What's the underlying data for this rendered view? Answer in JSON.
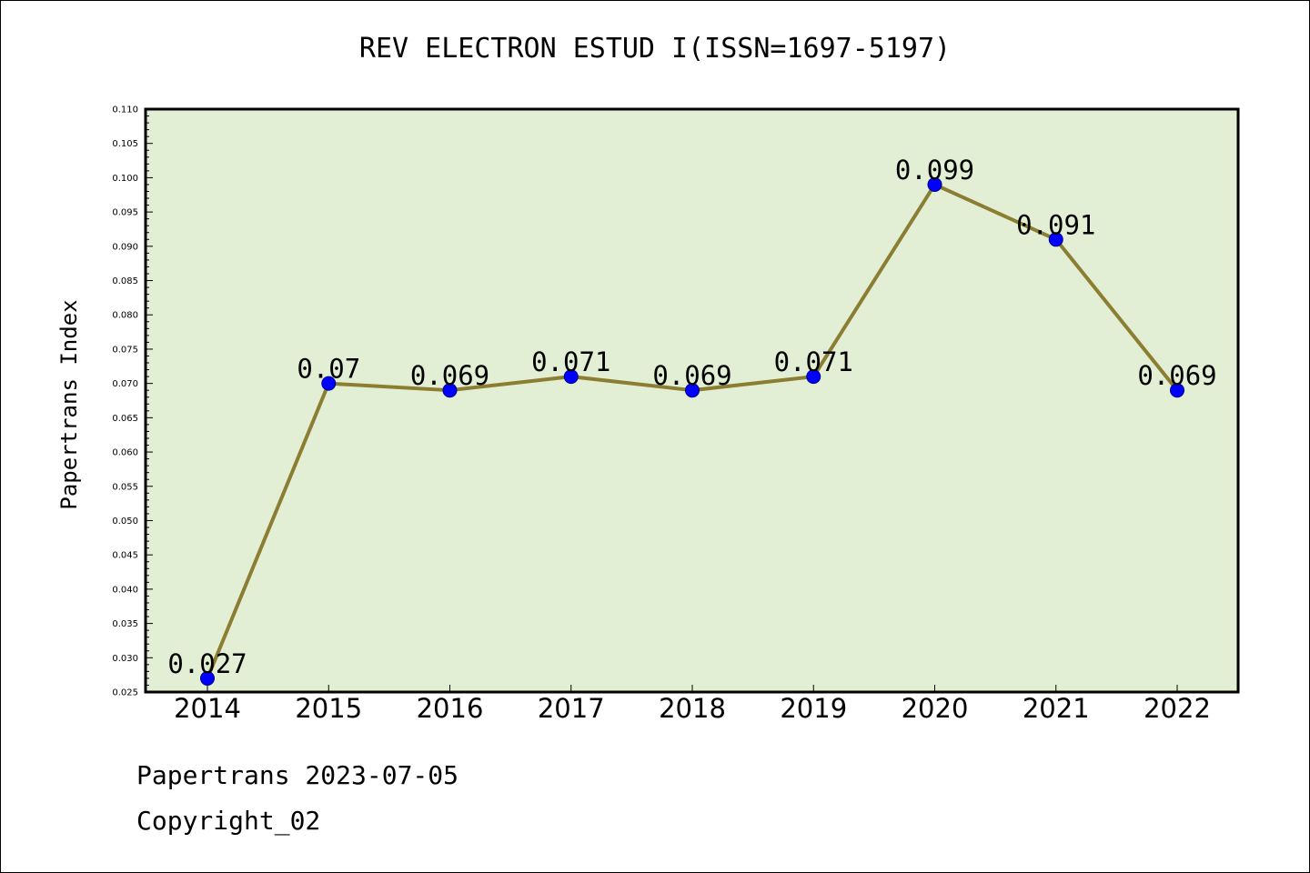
{
  "chart_data": {
    "type": "line",
    "title": "REV ELECTRON ESTUD I(ISSN=1697-5197)",
    "xlabel": "",
    "ylabel": "Papertrans Index",
    "categories": [
      "2014",
      "2015",
      "2016",
      "2017",
      "2018",
      "2019",
      "2020",
      "2021",
      "2022"
    ],
    "values": [
      0.027,
      0.07,
      0.069,
      0.071,
      0.069,
      0.071,
      0.099,
      0.091,
      0.069
    ],
    "data_labels": [
      "0.027",
      "0.07",
      "0.069",
      "0.071",
      "0.069",
      "0.071",
      "0.099",
      "0.091",
      "0.069"
    ],
    "ylim": [
      0.025,
      0.11
    ],
    "yticks": [
      "0.025",
      "0.030",
      "0.035",
      "0.040",
      "0.045",
      "0.050",
      "0.055",
      "0.060",
      "0.065",
      "0.070",
      "0.075",
      "0.080",
      "0.085",
      "0.090",
      "0.095",
      "0.100",
      "0.105",
      "0.110"
    ],
    "grid": false,
    "colors": {
      "plot_background": "#e2efd5",
      "line": "#8b7d32",
      "marker": "#0000ff"
    }
  },
  "footer": {
    "line1": "Papertrans 2023-07-05",
    "line2": "Copyright_02"
  }
}
